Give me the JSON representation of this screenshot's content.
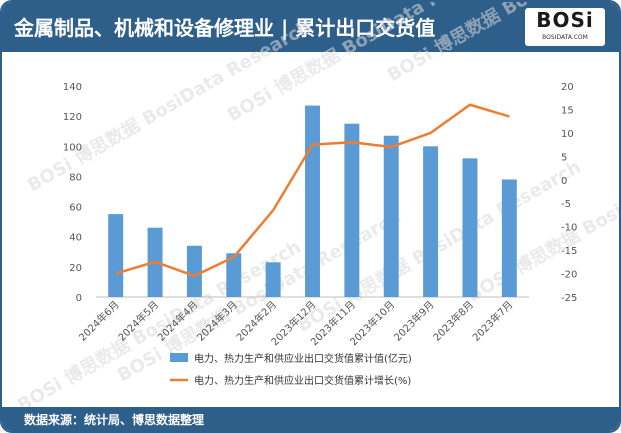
{
  "header": {
    "title": "金属制品、机械和设备修理业 | 累计出口交货值"
  },
  "logo": {
    "main": "BOSi",
    "sub": "BOSIDATA.COM"
  },
  "footer": {
    "source": "数据来源：统计局、博思数据整理"
  },
  "watermark": {
    "text": "BOSi 博思数据 BosiData Research"
  },
  "colors": {
    "header": "#2e5f8a",
    "bar": "#5b9bd5",
    "line": "#ed7d31"
  },
  "chart_data": {
    "type": "bar+line",
    "categories": [
      "2024年6月",
      "2024年5月",
      "2024年4月",
      "2024年3月",
      "2024年2月",
      "2023年12月",
      "2023年11月",
      "2023年10月",
      "2023年9月",
      "2023年8月",
      "2023年7月"
    ],
    "series": [
      {
        "name": "电力、热力生产和供应业出口交货值累计值(亿元)",
        "type": "bar",
        "axis": "left",
        "values": [
          55,
          46,
          34,
          29,
          23,
          127,
          115,
          107,
          100,
          92,
          78
        ]
      },
      {
        "name": "电力、热力生产和供应业出口交货值累计增长(%)",
        "type": "line",
        "axis": "right",
        "values": [
          -20,
          -17.5,
          -20.5,
          -16.5,
          -6.5,
          7.5,
          8,
          7,
          10,
          16,
          13.5
        ]
      }
    ],
    "left_axis": {
      "ylim": [
        0,
        140
      ],
      "ticks": [
        0,
        20,
        40,
        60,
        80,
        100,
        120,
        140
      ]
    },
    "right_axis": {
      "ylim": [
        -25,
        20
      ],
      "ticks": [
        -25,
        -20,
        -15,
        -10,
        -5,
        0,
        5,
        10,
        15,
        20
      ]
    },
    "legend_position": "bottom"
  }
}
